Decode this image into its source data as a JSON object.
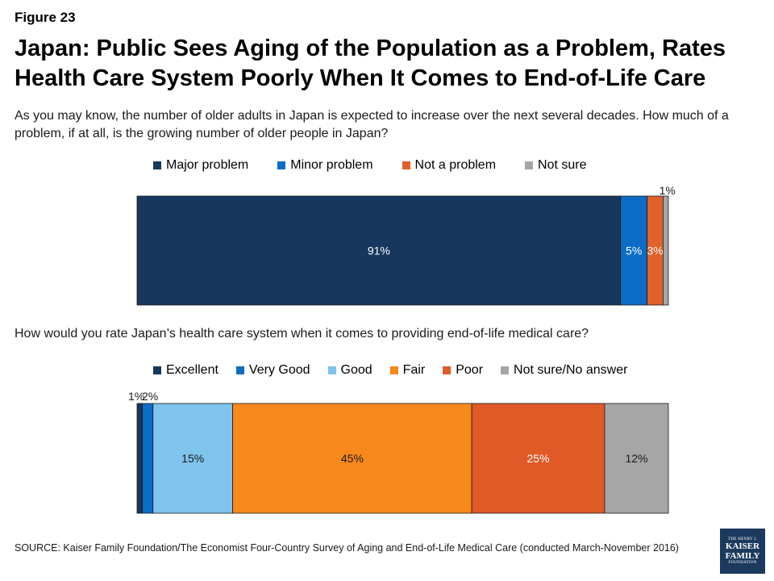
{
  "figure_label": "Figure 23",
  "title": "Japan: Public Sees Aging of the Population as a Problem, Rates Health Care System Poorly When It Comes to End-of-Life Care",
  "source": "SOURCE: Kaiser Family Foundation/The Economist Four-Country Survey of Aging and End-of-Life Medical Care (conducted March-November 2016)",
  "logo": {
    "line1": "THE HENRY J.",
    "line2": "KAISER",
    "line3": "FAMILY",
    "line4": "FOUNDATION"
  },
  "chart_data": [
    {
      "type": "bar",
      "orientation": "horizontal-stacked",
      "question": "As you may know, the number of older adults in Japan is expected to increase over the next several decades. How much of a problem, if at all, is the growing number of older people in Japan?",
      "series": [
        {
          "name": "Major problem",
          "value": 91,
          "label": "91%",
          "color": "#17375e"
        },
        {
          "name": "Minor problem",
          "value": 5,
          "label": "5%",
          "color": "#0b6dc6"
        },
        {
          "name": "Not a problem",
          "value": 3,
          "label": "3%",
          "color": "#e0612a"
        },
        {
          "name": "Not sure",
          "value": 1,
          "label": "1%",
          "color": "#a6a6a6"
        }
      ]
    },
    {
      "type": "bar",
      "orientation": "horizontal-stacked",
      "question": "How would you rate Japan’s health care system when it comes to providing end-of-life medical care?",
      "series": [
        {
          "name": "Excellent",
          "value": 1,
          "label": "1%",
          "color": "#17375e"
        },
        {
          "name": "Very Good",
          "value": 2,
          "label": "2%",
          "color": "#0b6dc6"
        },
        {
          "name": "Good",
          "value": 15,
          "label": "15%",
          "color": "#7fc4ec"
        },
        {
          "name": "Fair",
          "value": 45,
          "label": "45%",
          "color": "#f7881b"
        },
        {
          "name": "Poor",
          "value": 25,
          "label": "25%",
          "color": "#e05a28"
        },
        {
          "name": "Not sure/No answer",
          "value": 12,
          "label": "12%",
          "color": "#a6a6a6"
        }
      ]
    }
  ]
}
